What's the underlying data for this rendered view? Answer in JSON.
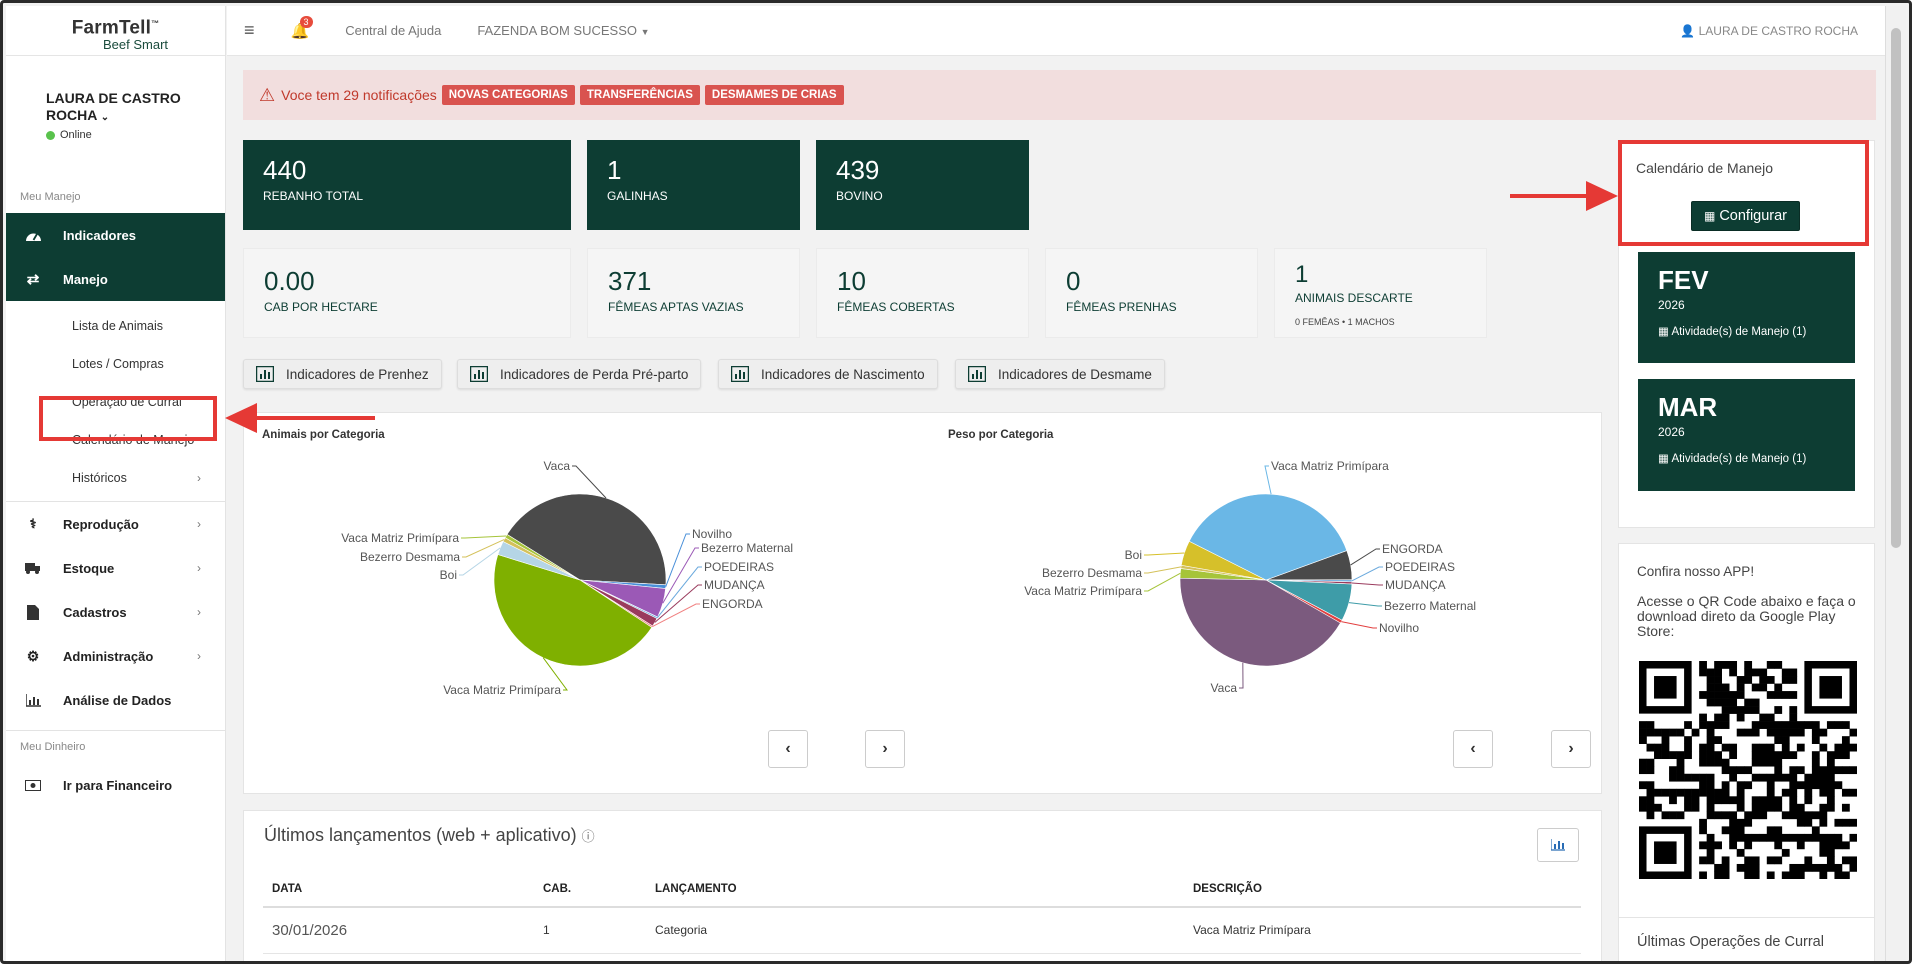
{
  "brand": {
    "name": "FarmTell",
    "tm": "™",
    "sub": "Beef Smart"
  },
  "user": {
    "name": "LAURA DE CASTRO ROCHA",
    "status": "Online"
  },
  "sidebar": {
    "section1": "Meu Manejo",
    "indicadores": "Indicadores",
    "manejo": "Manejo",
    "sub": [
      "Lista de Animais",
      "Lotes / Compras",
      "Operação de Curral",
      "Calendário de Manejo",
      "Históricos"
    ],
    "reproducao": "Reprodução",
    "estoque": "Estoque",
    "cadastros": "Cadastros",
    "administracao": "Administração",
    "analise": "Análise de Dados",
    "section2": "Meu Dinheiro",
    "financeiro": "Ir para Financeiro"
  },
  "topbar": {
    "badge": "3",
    "help": "Central de Ajuda",
    "farm": "FAZENDA BOM SUCESSO",
    "user": "LAURA DE CASTRO ROCHA"
  },
  "alert": {
    "text": "Voce tem 29 notificações",
    "tags": [
      "NOVAS CATEGORIAS",
      "TRANSFERÊNCIAS",
      "DESMAMES DE CRIAS"
    ]
  },
  "stats": [
    {
      "value": "440",
      "label": "REBANHO TOTAL"
    },
    {
      "value": "1",
      "label": "GALINHAS"
    },
    {
      "value": "439",
      "label": "BOVINO"
    },
    {
      "value": "0.00",
      "label": "CAB POR HECTARE"
    },
    {
      "value": "371",
      "label": "FÊMEAS APTAS VAZIAS"
    },
    {
      "value": "10",
      "label": "FÊMEAS COBERTAS"
    },
    {
      "value": "0",
      "label": "FÊMEAS PRENHAS"
    },
    {
      "value": "1",
      "label": "ANIMAIS DESCARTE",
      "sub": "0 FEMÊAS • 1 MACHOS"
    }
  ],
  "buttons": [
    "Indicadores de Prenhez",
    "Indicadores de Perda Pré-parto",
    "Indicadores de Nascimento",
    "Indicadores de Desmame"
  ],
  "charts": {
    "colors": {
      "Vaca": "#4a4a4a",
      "Novilho": "#4a90d9",
      "Bezerro Maternal": "#9b59b6",
      "POEDEIRAS": "#6aa9dd",
      "MUDANÇA": "#9a3b5d",
      "ENGORDA": "#f08080",
      "Vaca Matriz Primípara": "#7fb000",
      "Boi": "#b5d5e6",
      "Bezerro Desmama": "#d4c15a",
      "Vaca Matriz Primípara 2": "#a6c43a",
      "Bezerro Maternal 2": "#3e9ca8",
      "Vaca 2": "#7b5a7e",
      "Vaca Matriz Primípara blue": "#6ab7e6"
    }
  },
  "chart_data": [
    {
      "type": "pie",
      "title": "Animais por Categoria",
      "labels": [
        "Vaca",
        "Novilho",
        "Bezerro Maternal",
        "POEDEIRAS",
        "MUDANÇA",
        "ENGORDA",
        "Vaca Matriz Primípara",
        "Boi",
        "Bezerro Desmama",
        "Vaca Matriz Primípara"
      ],
      "values": [
        42.0,
        0.7,
        5.5,
        0.3,
        1.6,
        0.3,
        45.5,
        2.6,
        0.8,
        0.7
      ]
    },
    {
      "type": "pie",
      "title": "Peso por Categoria",
      "labels": [
        "ENGORDA",
        "POEDEIRAS",
        "MUDANÇA",
        "Bezerro Maternal",
        "Novilho",
        "Vaca",
        "Vaca Matriz Primípara",
        "Bezerro Desmama",
        "Boi",
        "Vaca Matriz Primípara"
      ],
      "values": [
        5.5,
        0.4,
        0.4,
        7.0,
        0.6,
        42.0,
        1.8,
        0.6,
        4.7,
        37.0
      ]
    }
  ],
  "latest": {
    "title": "Últimos lançamentos (web + aplicativo)",
    "headers": [
      "DATA",
      "CAB.",
      "LANÇAMENTO",
      "DESCRIÇÃO"
    ],
    "rows": [
      [
        "30/01/2026",
        "1",
        "Categoria",
        "Vaca Matriz Primípara"
      ]
    ]
  },
  "calendar": {
    "title": "Calendário de Manejo",
    "button": "Configurar",
    "months": [
      {
        "m": "FEV",
        "y": "2026",
        "a": "Atividade(s) de Manejo (1)"
      },
      {
        "m": "MAR",
        "y": "2026",
        "a": "Atividade(s) de Manejo (1)"
      }
    ]
  },
  "app": {
    "title": "Confira nosso APP!",
    "text": "Acesse o QR Code abaixo e faça o download direto da Google Play Store:"
  },
  "last_ops": "Últimas Operações de Curral"
}
